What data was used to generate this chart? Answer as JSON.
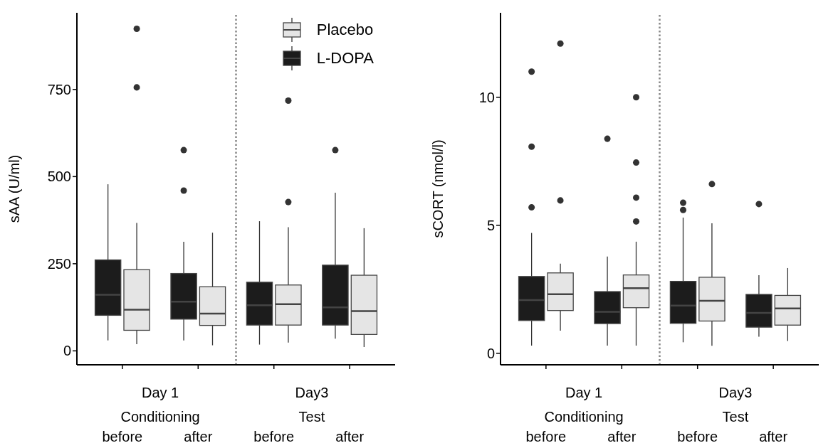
{
  "chart_data": [
    {
      "type": "box",
      "categories": [
        "before",
        "after",
        "before",
        "after"
      ],
      "ylabel": "sAA (U/ml)",
      "ylim": [
        -40,
        970
      ],
      "yticks": [
        0,
        250,
        500,
        750
      ],
      "legend": "top right",
      "annotations": [
        "Day 1",
        "Conditioning",
        "Day3",
        "Test"
      ],
      "series": [
        {
          "name": "Placebo",
          "color": "#e5e5e5",
          "boxes": [
            {
              "low": 19,
              "q1": 59,
              "median": 118,
              "q3": 233,
              "high": 367,
              "outliers": [
                924,
                756
              ]
            },
            {
              "low": 16,
              "q1": 73,
              "median": 107,
              "q3": 184,
              "high": 339
            },
            {
              "low": 24,
              "q1": 74,
              "median": 134,
              "q3": 189,
              "high": 355,
              "outliers": [
                718,
                427
              ]
            },
            {
              "low": 11,
              "q1": 47,
              "median": 114,
              "q3": 217,
              "high": 352
            }
          ]
        },
        {
          "name": "L-DOPA",
          "color": "#1c1c1c",
          "boxes": [
            {
              "low": 30,
              "q1": 102,
              "median": 161,
              "q3": 261,
              "high": 478
            },
            {
              "low": 30,
              "q1": 91,
              "median": 141,
              "q3": 222,
              "high": 313,
              "outliers": [
                576,
                460
              ]
            },
            {
              "low": 18,
              "q1": 74,
              "median": 131,
              "q3": 197,
              "high": 372
            },
            {
              "low": 35,
              "q1": 74,
              "median": 125,
              "q3": 246,
              "high": 454,
              "outliers": [
                576
              ]
            }
          ]
        }
      ]
    },
    {
      "type": "box",
      "categories": [
        "before",
        "after",
        "before",
        "after"
      ],
      "ylabel": "sCORT (nmol/l)",
      "ylim": [
        -0.45,
        13.3
      ],
      "yticks": [
        0,
        5,
        10
      ],
      "annotations": [
        "Day 1",
        "Conditioning",
        "Day3",
        "Test"
      ],
      "series": [
        {
          "color": "#e5e5e5",
          "boxes": [
            {
              "low": 0.88,
              "q1": 1.67,
              "median": 2.31,
              "q3": 3.14,
              "high": 3.5,
              "outliers": [
                12.1,
                5.97
              ]
            },
            {
              "low": 0.3,
              "q1": 1.78,
              "median": 2.54,
              "q3": 3.06,
              "high": 4.36,
              "outliers": [
                10.0,
                7.45,
                6.08,
                5.15
              ]
            },
            {
              "low": 0.29,
              "q1": 1.26,
              "median": 2.05,
              "q3": 2.97,
              "high": 5.08,
              "outliers": [
                6.61
              ]
            },
            {
              "low": 0.48,
              "q1": 1.1,
              "median": 1.75,
              "q3": 2.26,
              "high": 3.33
            }
          ]
        },
        {
          "color": "#1c1c1c",
          "boxes": [
            {
              "low": 0.3,
              "q1": 1.28,
              "median": 2.08,
              "q3": 3.0,
              "high": 4.7,
              "outliers": [
                11.0,
                8.07,
                5.7
              ]
            },
            {
              "low": 0.3,
              "q1": 1.16,
              "median": 1.62,
              "q3": 2.41,
              "high": 3.78,
              "outliers": [
                8.38
              ]
            },
            {
              "low": 0.43,
              "q1": 1.17,
              "median": 1.86,
              "q3": 2.81,
              "high": 5.3,
              "outliers": [
                5.88,
                5.6
              ]
            },
            {
              "low": 0.65,
              "q1": 1.02,
              "median": 1.58,
              "q3": 2.3,
              "high": 3.05,
              "outliers": [
                5.83
              ]
            }
          ]
        }
      ]
    }
  ]
}
